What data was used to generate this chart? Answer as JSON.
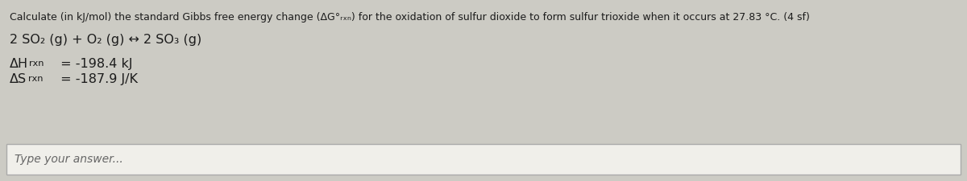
{
  "title_text": "Calculate (in kJ/mol) the standard Gibbs free energy change (ΔG°ᵣₓₙ) for the oxidation of sulfur dioxide to form sulfur trioxide when it occurs at 27.83 °C. (4 sf)",
  "reaction_text": "2 SO₂ (g) + O₂ (g) ↔ 2 SO₃ (g)",
  "dH_main": "ΔH",
  "dH_sub": "rxn",
  "dH_val": " = -198.4 kJ",
  "dS_main": "ΔS",
  "dS_sub": "rxn",
  "dS_val": " = -187.9 J/K",
  "input_placeholder": "Type your answer...",
  "bg_color": "#cccbc4",
  "text_color": "#1c1c1c",
  "input_bg": "#f0efea",
  "input_border": "#aaaaaa",
  "title_fontsize": 9.0,
  "body_fontsize": 11.5,
  "input_fontsize": 10.0
}
